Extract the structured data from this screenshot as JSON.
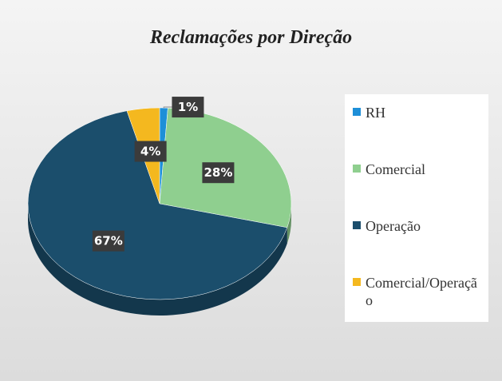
{
  "chart_data": {
    "type": "pie",
    "title": "Reclamações por Direção",
    "categories": [
      "RH",
      "Comercial",
      "Operação",
      "Comercial/Operação"
    ],
    "values": [
      1,
      28,
      67,
      4
    ],
    "value_labels": [
      "1%",
      "28%",
      "67%",
      "4%"
    ],
    "colors": [
      "#1e8fd8",
      "#8fcf8f",
      "#1b4e6c",
      "#f4b81f"
    ],
    "legend": "right"
  }
}
